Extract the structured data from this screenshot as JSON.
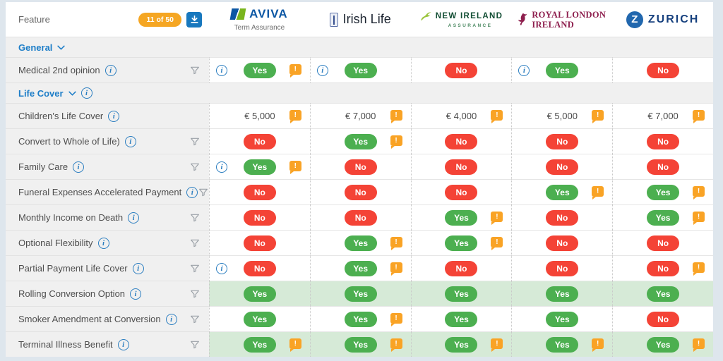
{
  "header": {
    "feature_label": "Feature",
    "count_badge": "11 of 50"
  },
  "providers": [
    {
      "name": "AVIVA",
      "subtitle": "Term Assurance"
    },
    {
      "name": "Irish Life",
      "subtitle": ""
    },
    {
      "name": "NEW IRELAND",
      "subtitle": "ASSURANCE"
    },
    {
      "name": "ROYAL LONDON",
      "line2": "IRELAND"
    },
    {
      "name": "ZURICH",
      "initial": "Z"
    }
  ],
  "colors": {
    "yes_green": "#4caf50",
    "no_red": "#f44336",
    "alert_orange": "#f9a325",
    "badge_orange": "#f5a623",
    "info_blue": "#2b7ec0",
    "section_blue": "#1e7ec8",
    "highlight_green": "#d6ead7"
  },
  "sections": [
    {
      "label": "General",
      "info": false,
      "rows": [
        {
          "label": "Medical 2nd opinion",
          "info": true,
          "filter": true,
          "highlight": false,
          "cells": [
            {
              "v": "Yes",
              "info": true,
              "alert": true
            },
            {
              "v": "Yes",
              "info": true,
              "alert": false
            },
            {
              "v": "No",
              "info": false,
              "alert": false
            },
            {
              "v": "Yes",
              "info": true,
              "alert": false
            },
            {
              "v": "No",
              "info": false,
              "alert": false
            }
          ]
        }
      ]
    },
    {
      "label": "Life Cover",
      "info": true,
      "rows": [
        {
          "label": "Children's Life Cover",
          "info": true,
          "filter": false,
          "highlight": false,
          "cells": [
            {
              "v": "€ 5,000",
              "alert": true
            },
            {
              "v": "€ 7,000",
              "alert": true
            },
            {
              "v": "€ 4,000",
              "alert": true
            },
            {
              "v": "€ 5,000",
              "alert": true
            },
            {
              "v": "€ 7,000",
              "alert": true
            }
          ]
        },
        {
          "label": "Convert to Whole of Life)",
          "info": true,
          "filter": true,
          "highlight": false,
          "cells": [
            {
              "v": "No"
            },
            {
              "v": "Yes",
              "alert": true
            },
            {
              "v": "No"
            },
            {
              "v": "No"
            },
            {
              "v": "No"
            }
          ]
        },
        {
          "label": "Family Care",
          "info": true,
          "filter": true,
          "highlight": false,
          "cells": [
            {
              "v": "Yes",
              "info": true,
              "alert": true
            },
            {
              "v": "No"
            },
            {
              "v": "No"
            },
            {
              "v": "No"
            },
            {
              "v": "No"
            }
          ]
        },
        {
          "label": "Funeral Expenses Accelerated Payment",
          "info": true,
          "filter": true,
          "highlight": false,
          "cells": [
            {
              "v": "No"
            },
            {
              "v": "No"
            },
            {
              "v": "No"
            },
            {
              "v": "Yes",
              "alert": true
            },
            {
              "v": "Yes",
              "alert": true
            }
          ]
        },
        {
          "label": "Monthly Income on Death",
          "info": true,
          "filter": true,
          "highlight": false,
          "cells": [
            {
              "v": "No"
            },
            {
              "v": "No"
            },
            {
              "v": "Yes",
              "alert": true
            },
            {
              "v": "No"
            },
            {
              "v": "Yes",
              "alert": true
            }
          ]
        },
        {
          "label": "Optional Flexibility",
          "info": true,
          "filter": true,
          "highlight": false,
          "cells": [
            {
              "v": "No"
            },
            {
              "v": "Yes",
              "alert": true
            },
            {
              "v": "Yes",
              "alert": true
            },
            {
              "v": "No"
            },
            {
              "v": "No"
            }
          ]
        },
        {
          "label": "Partial Payment Life Cover",
          "info": true,
          "filter": true,
          "highlight": false,
          "cells": [
            {
              "v": "No",
              "info": true
            },
            {
              "v": "Yes",
              "alert": true
            },
            {
              "v": "No"
            },
            {
              "v": "No"
            },
            {
              "v": "No",
              "alert": true
            }
          ]
        },
        {
          "label": "Rolling Conversion Option",
          "info": true,
          "filter": true,
          "highlight": true,
          "cells": [
            {
              "v": "Yes"
            },
            {
              "v": "Yes"
            },
            {
              "v": "Yes"
            },
            {
              "v": "Yes"
            },
            {
              "v": "Yes"
            }
          ]
        },
        {
          "label": "Smoker Amendment at Conversion",
          "info": true,
          "filter": true,
          "highlight": false,
          "cells": [
            {
              "v": "Yes"
            },
            {
              "v": "Yes",
              "alert": true
            },
            {
              "v": "Yes"
            },
            {
              "v": "Yes"
            },
            {
              "v": "No"
            }
          ]
        },
        {
          "label": "Terminal Illness Benefit",
          "info": true,
          "filter": true,
          "highlight": true,
          "cells": [
            {
              "v": "Yes",
              "alert": true
            },
            {
              "v": "Yes",
              "alert": true
            },
            {
              "v": "Yes",
              "alert": true
            },
            {
              "v": "Yes",
              "alert": true
            },
            {
              "v": "Yes",
              "alert": true
            }
          ]
        }
      ]
    }
  ]
}
